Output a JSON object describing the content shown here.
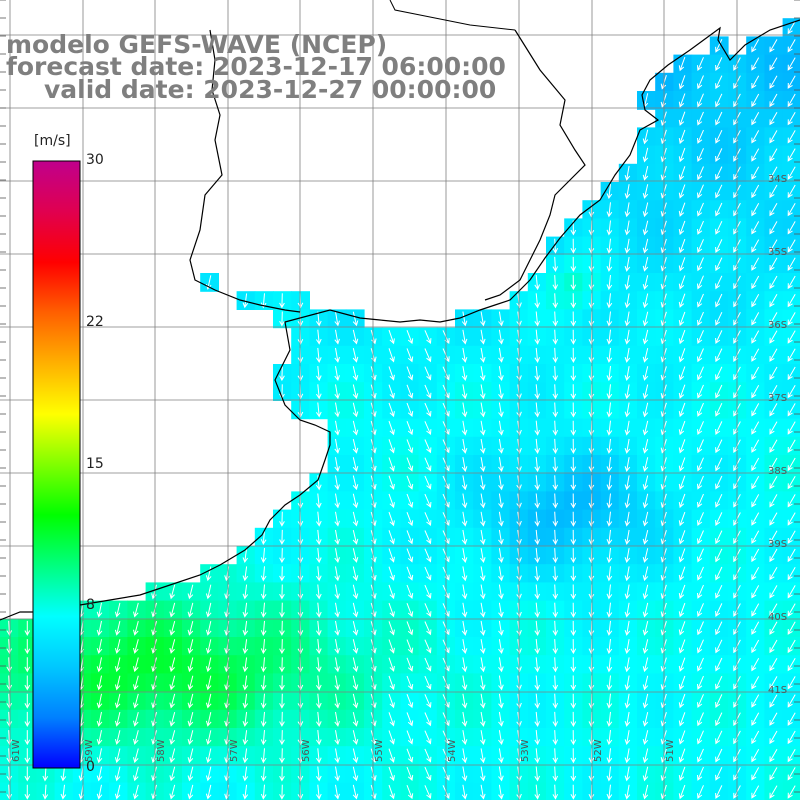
{
  "title": {
    "model": "modelo GEFS-WAVE (NCEP)",
    "forecast": "forecast date: 2023-12-17 06:00:00",
    "valid": "valid date: 2023-12-27 00:00:00"
  },
  "colorbar": {
    "unit": "[m/s]",
    "min": 0,
    "max": 30,
    "ticks": [
      "30",
      "22",
      "15",
      "8",
      "0"
    ],
    "tick_values": [
      30,
      22,
      15,
      8,
      0
    ],
    "colors": [
      "#0000ff",
      "#0080ff",
      "#00c8ff",
      "#00ffff",
      "#00ff80",
      "#00ff00",
      "#80ff00",
      "#ffff00",
      "#ffb000",
      "#ff6000",
      "#ff0000",
      "#e00050",
      "#c0008c"
    ]
  },
  "lon_labels": [
    "61W",
    "59W",
    "58W",
    "57W",
    "56W",
    "55W",
    "54W",
    "53W",
    "52W",
    "51W"
  ],
  "lat_labels": [
    "34S",
    "35S",
    "36S",
    "37S",
    "38S",
    "39S",
    "40S",
    "41S"
  ],
  "theme": {
    "land": "#ffffff",
    "coast": "#000000",
    "grid": "#7f7f7f",
    "arrow": "#ffffff",
    "title_color": "#7f7f7f"
  },
  "chart_data": {
    "type": "heatmap",
    "variable": "wind speed",
    "unit": "m/s",
    "direction": "predominantly from the north-east, blowing toward the south-west",
    "speed_range_observed": [
      3,
      12
    ]
  }
}
